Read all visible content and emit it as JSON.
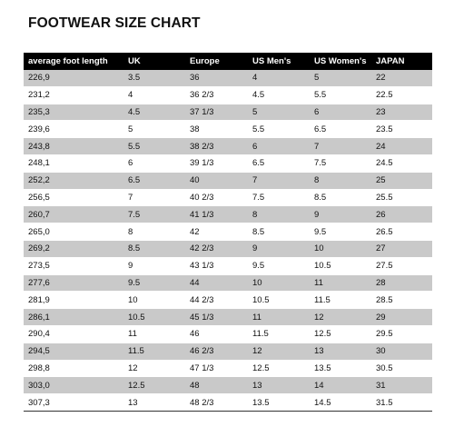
{
  "title": "FOOTWEAR SIZE CHART",
  "columns": [
    "average foot length",
    "UK",
    "Europe",
    "US Men's",
    "US Women's",
    "JAPAN"
  ],
  "rows": [
    [
      "226,9",
      "3.5",
      "36",
      "4",
      "5",
      "22"
    ],
    [
      "231,2",
      "4",
      "36 2/3",
      "4.5",
      "5.5",
      "22.5"
    ],
    [
      "235,3",
      "4.5",
      "37 1/3",
      "5",
      "6",
      "23"
    ],
    [
      "239,6",
      "5",
      "38",
      "5.5",
      "6.5",
      "23.5"
    ],
    [
      "243,8",
      "5.5",
      "38 2/3",
      "6",
      "7",
      "24"
    ],
    [
      "248,1",
      "6",
      "39 1/3",
      "6.5",
      "7.5",
      "24.5"
    ],
    [
      "252,2",
      "6.5",
      "40",
      "7",
      "8",
      "25"
    ],
    [
      "256,5",
      "7",
      "40 2/3",
      "7.5",
      "8.5",
      "25.5"
    ],
    [
      "260,7",
      "7.5",
      "41 1/3",
      "8",
      "9",
      "26"
    ],
    [
      "265,0",
      "8",
      "42",
      "8.5",
      "9.5",
      "26.5"
    ],
    [
      "269,2",
      "8.5",
      "42 2/3",
      "9",
      "10",
      "27"
    ],
    [
      "273,5",
      "9",
      "43 1/3",
      "9.5",
      "10.5",
      "27.5"
    ],
    [
      "277,6",
      "9.5",
      "44",
      "10",
      "11",
      "28"
    ],
    [
      "281,9",
      "10",
      "44 2/3",
      "10.5",
      "11.5",
      "28.5"
    ],
    [
      "286,1",
      "10.5",
      "45 1/3",
      "11",
      "12",
      "29"
    ],
    [
      "290,4",
      "11",
      "46",
      "11.5",
      "12.5",
      "29.5"
    ],
    [
      "294,5",
      "11.5",
      "46 2/3",
      "12",
      "13",
      "30"
    ],
    [
      "298,8",
      "12",
      "47 1/3",
      "12.5",
      "13.5",
      "30.5"
    ],
    [
      "303,0",
      "12.5",
      "48",
      "13",
      "14",
      "31"
    ],
    [
      "307,3",
      "13",
      "48 2/3",
      "13.5",
      "14.5",
      "31.5"
    ]
  ],
  "colors": {
    "header_bg": "#000000",
    "header_text": "#ffffff",
    "stripe": "#c9c9c9",
    "row_bg": "#ffffff"
  }
}
